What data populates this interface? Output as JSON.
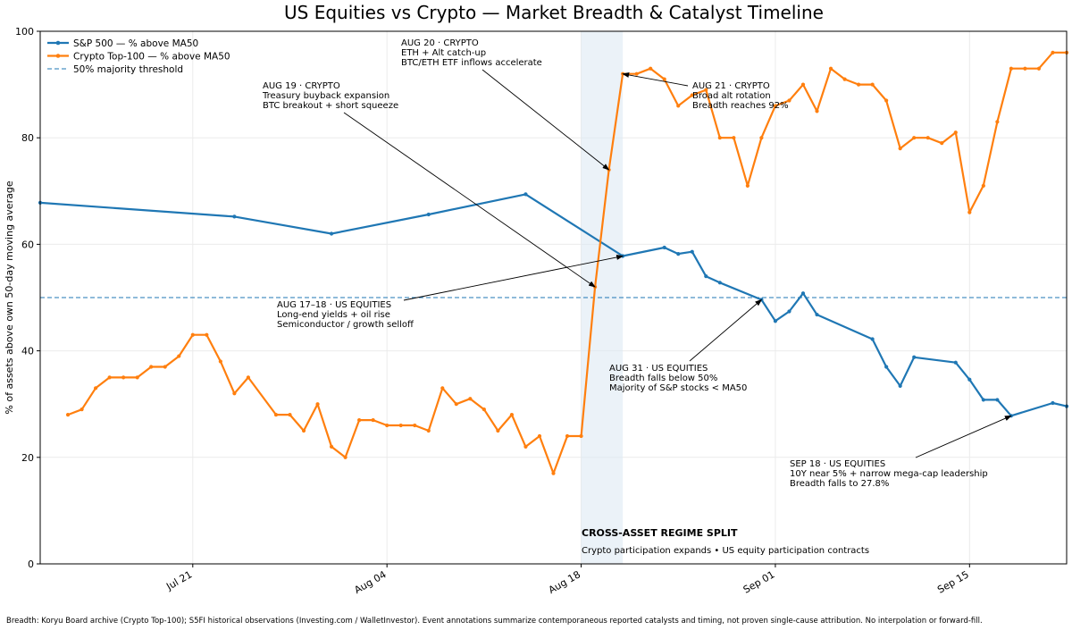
{
  "chart_data": {
    "type": "line",
    "title": "US Equities vs Crypto — Market Breadth & Catalyst Timeline",
    "ylabel": "% of assets above own 50-day moving average",
    "xlabel": "",
    "xlim": [
      "2025-07-10",
      "2025-09-22"
    ],
    "ylim": [
      0,
      100
    ],
    "yticks": [
      0,
      20,
      40,
      60,
      80,
      100
    ],
    "xticks": [
      {
        "date": "2025-07-21",
        "label": "Jul 21"
      },
      {
        "date": "2025-08-04",
        "label": "Aug 04"
      },
      {
        "date": "2025-08-18",
        "label": "Aug 18"
      },
      {
        "date": "2025-09-01",
        "label": "Sep 01"
      },
      {
        "date": "2025-09-15",
        "label": "Sep 15"
      }
    ],
    "grid": true,
    "legend_position": "top-left",
    "threshold": {
      "value": 50,
      "label": "50% majority threshold",
      "color": "#1f77b4"
    },
    "shaded_region": {
      "start": "2025-08-18",
      "end": "2025-08-21",
      "color": "#dbe8f3"
    },
    "series": [
      {
        "name": "S&P 500 — % above MA50",
        "color": "#1f77b4",
        "points": [
          [
            "2025-07-10",
            67.8
          ],
          [
            "2025-07-24",
            65.2
          ],
          [
            "2025-07-31",
            62.0
          ],
          [
            "2025-08-07",
            65.6
          ],
          [
            "2025-08-14",
            69.4
          ],
          [
            "2025-08-21",
            57.8
          ],
          [
            "2025-08-24",
            59.4
          ],
          [
            "2025-08-25",
            58.2
          ],
          [
            "2025-08-26",
            58.6
          ],
          [
            "2025-08-27",
            54.0
          ],
          [
            "2025-08-28",
            52.8
          ],
          [
            "2025-08-31",
            49.6
          ],
          [
            "2025-09-01",
            45.6
          ],
          [
            "2025-09-02",
            47.4
          ],
          [
            "2025-09-03",
            50.8
          ],
          [
            "2025-09-04",
            46.8
          ],
          [
            "2025-09-08",
            42.2
          ],
          [
            "2025-09-09",
            37.0
          ],
          [
            "2025-09-10",
            33.4
          ],
          [
            "2025-09-11",
            38.8
          ],
          [
            "2025-09-14",
            37.8
          ],
          [
            "2025-09-15",
            34.6
          ],
          [
            "2025-09-16",
            30.8
          ],
          [
            "2025-09-17",
            30.8
          ],
          [
            "2025-09-18",
            27.8
          ],
          [
            "2025-09-21",
            30.2
          ],
          [
            "2025-09-22",
            29.6
          ]
        ]
      },
      {
        "name": "Crypto Top-100 — % above MA50",
        "color": "#ff7f0e",
        "points": [
          [
            "2025-07-12",
            28
          ],
          [
            "2025-07-13",
            29
          ],
          [
            "2025-07-14",
            33
          ],
          [
            "2025-07-15",
            35
          ],
          [
            "2025-07-16",
            35
          ],
          [
            "2025-07-17",
            35
          ],
          [
            "2025-07-18",
            37
          ],
          [
            "2025-07-19",
            37
          ],
          [
            "2025-07-20",
            39
          ],
          [
            "2025-07-21",
            43
          ],
          [
            "2025-07-22",
            43
          ],
          [
            "2025-07-23",
            38
          ],
          [
            "2025-07-24",
            32
          ],
          [
            "2025-07-25",
            35
          ],
          [
            "2025-07-27",
            28
          ],
          [
            "2025-07-28",
            28
          ],
          [
            "2025-07-29",
            25
          ],
          [
            "2025-07-30",
            30
          ],
          [
            "2025-07-31",
            22
          ],
          [
            "2025-08-01",
            20
          ],
          [
            "2025-08-02",
            27
          ],
          [
            "2025-08-03",
            27
          ],
          [
            "2025-08-04",
            26
          ],
          [
            "2025-08-05",
            26
          ],
          [
            "2025-08-06",
            26
          ],
          [
            "2025-08-07",
            25
          ],
          [
            "2025-08-08",
            33
          ],
          [
            "2025-08-09",
            30
          ],
          [
            "2025-08-10",
            31
          ],
          [
            "2025-08-11",
            29
          ],
          [
            "2025-08-12",
            25
          ],
          [
            "2025-08-13",
            28
          ],
          [
            "2025-08-14",
            22
          ],
          [
            "2025-08-15",
            24
          ],
          [
            "2025-08-16",
            17
          ],
          [
            "2025-08-17",
            24
          ],
          [
            "2025-08-18",
            24
          ],
          [
            "2025-08-19",
            52
          ],
          [
            "2025-08-20",
            74
          ],
          [
            "2025-08-21",
            92
          ],
          [
            "2025-08-22",
            92
          ],
          [
            "2025-08-23",
            93
          ],
          [
            "2025-08-24",
            91
          ],
          [
            "2025-08-25",
            86
          ],
          [
            "2025-08-26",
            88
          ],
          [
            "2025-08-27",
            89
          ],
          [
            "2025-08-28",
            80
          ],
          [
            "2025-08-29",
            80
          ],
          [
            "2025-08-30",
            71
          ],
          [
            "2025-08-31",
            80
          ],
          [
            "2025-09-01",
            86
          ],
          [
            "2025-09-02",
            87
          ],
          [
            "2025-09-03",
            90
          ],
          [
            "2025-09-04",
            85
          ],
          [
            "2025-09-05",
            93
          ],
          [
            "2025-09-06",
            91
          ],
          [
            "2025-09-07",
            90
          ],
          [
            "2025-09-08",
            90
          ],
          [
            "2025-09-09",
            87
          ],
          [
            "2025-09-10",
            78
          ],
          [
            "2025-09-11",
            80
          ],
          [
            "2025-09-12",
            80
          ],
          [
            "2025-09-13",
            79
          ],
          [
            "2025-09-14",
            81
          ],
          [
            "2025-09-15",
            66
          ],
          [
            "2025-09-16",
            71
          ],
          [
            "2025-09-17",
            83
          ],
          [
            "2025-09-18",
            93
          ],
          [
            "2025-09-19",
            93
          ],
          [
            "2025-09-20",
            93
          ],
          [
            "2025-09-21",
            96
          ],
          [
            "2025-09-22",
            96
          ]
        ]
      }
    ],
    "annotations": [
      {
        "lines": [
          "AUG 20 · CRYPTO",
          "ETH + Alt catch-up",
          "BTC/ETH ETF inflows accelerate"
        ],
        "target": [
          "2025-08-20",
          74
        ]
      },
      {
        "lines": [
          "AUG 19 · CRYPTO",
          "Treasury buyback expansion",
          "BTC breakout + short squeeze"
        ],
        "target": [
          "2025-08-19",
          52
        ]
      },
      {
        "lines": [
          "AUG 21 · CRYPTO",
          "Broad alt rotation",
          "Breadth reaches 92%"
        ],
        "target": [
          "2025-08-21",
          92
        ]
      },
      {
        "lines": [
          "AUG 17–18 · US EQUITIES",
          "Long-end yields + oil rise",
          "Semiconductor / growth selloff"
        ],
        "target": [
          "2025-08-21",
          57.8
        ]
      },
      {
        "lines": [
          "AUG 31 · US EQUITIES",
          "Breadth falls below 50%",
          "Majority of S&P stocks < MA50"
        ],
        "target": [
          "2025-08-31",
          49.6
        ]
      },
      {
        "lines": [
          "SEP 18 · US EQUITIES",
          "10Y near 5% + narrow mega-cap leadership",
          "Breadth falls to 27.8%"
        ],
        "target": [
          "2025-09-18",
          27.8
        ]
      }
    ],
    "regime": {
      "title": "CROSS-ASSET REGIME SPLIT",
      "subtitle": "Crypto participation expands • US equity participation contracts"
    }
  },
  "footer": "Breadth: Koryu Board archive (Crypto Top-100); S5FI historical observations (Investing.com / WalletInvestor). Event annotations summarize contemporaneous reported catalysts and timing, not proven single-cause attribution. No interpolation or forward-fill."
}
